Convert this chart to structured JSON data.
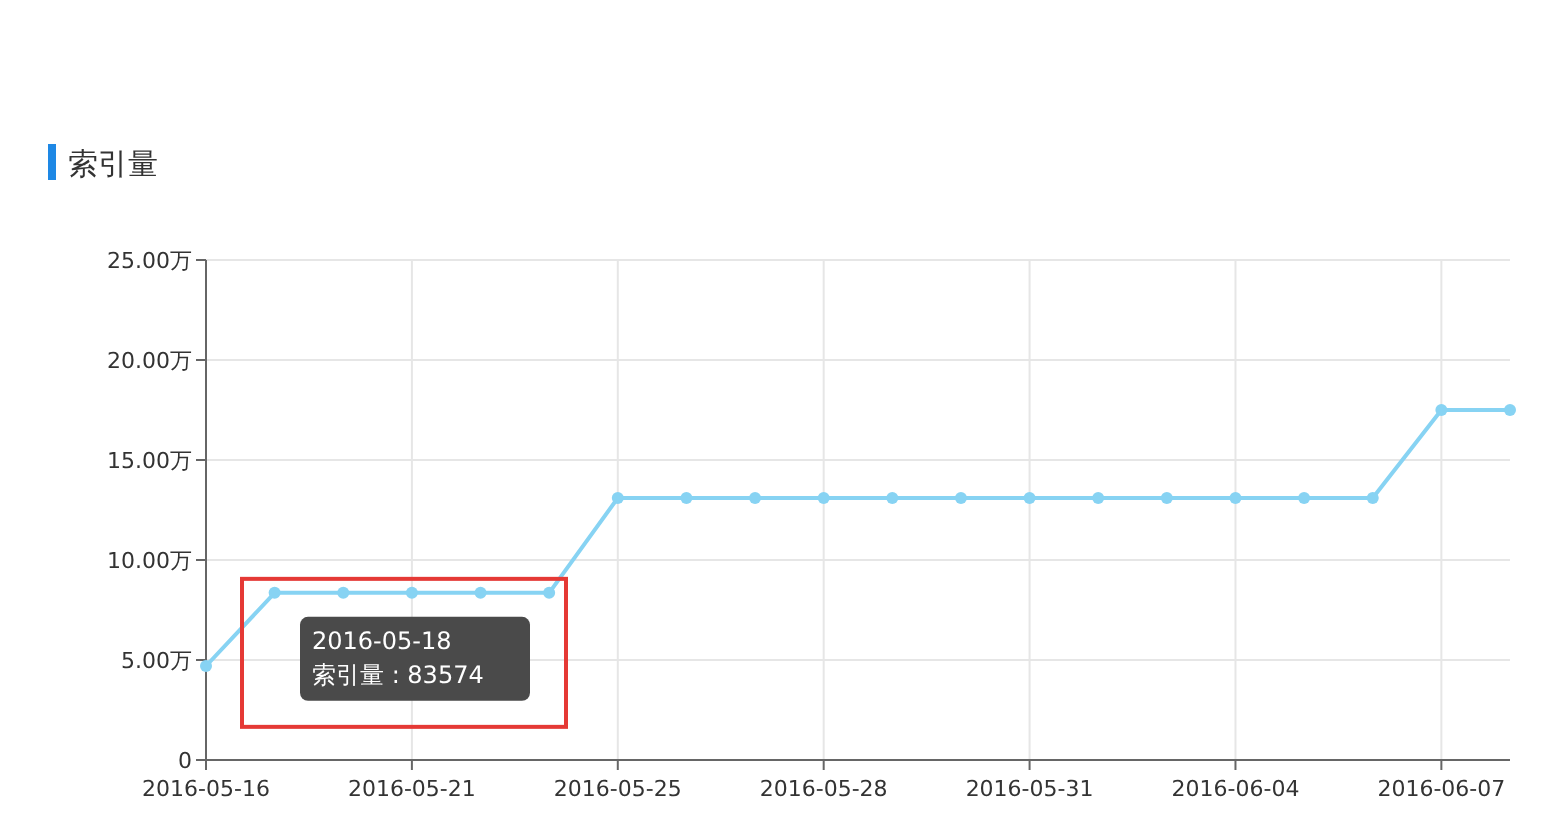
{
  "chart_data": {
    "type": "line",
    "title": "索引量",
    "categories": [
      "2016-05-16",
      null,
      null,
      "2016-05-21",
      null,
      null,
      "2016-05-25",
      null,
      null,
      "2016-05-28",
      null,
      null,
      "2016-05-31",
      null,
      null,
      "2016-06-04",
      null,
      null,
      "2016-06-07",
      null
    ],
    "series": [
      {
        "color": "#87d3f3",
        "values": [
          4.7,
          8.3574,
          8.3574,
          8.3574,
          8.3574,
          8.3574,
          13.1,
          13.1,
          13.1,
          13.1,
          13.1,
          13.1,
          13.1,
          13.1,
          13.1,
          13.1,
          13.1,
          13.1,
          17.5,
          17.5
        ]
      }
    ],
    "ylim": [
      0,
      25
    ],
    "yticks": [
      0,
      {
        "value": 5,
        "label": "5.00万"
      },
      {
        "value": 10,
        "label": "10.00万"
      },
      {
        "value": 15,
        "label": "15.00万"
      },
      {
        "value": 20,
        "label": "20.00万"
      },
      {
        "value": 25,
        "label": "25.00万"
      }
    ],
    "grid": true,
    "marker": "circle",
    "line_style": "solid",
    "annotations": [
      {
        "text": "2016-05-18\n索引量 : 83574",
        "y": 8.3574
      }
    ]
  }
}
